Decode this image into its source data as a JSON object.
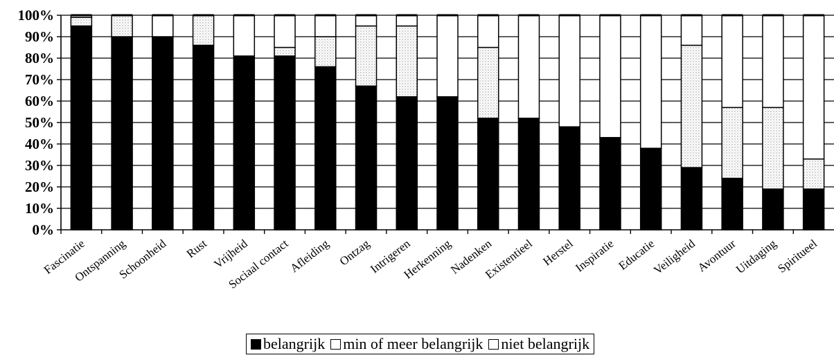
{
  "chart_data": {
    "type": "bar",
    "stacked": true,
    "categories": [
      "Fascinatie",
      "Ontspanning",
      "Schoonheid",
      "Rust",
      "Vrijheid",
      "Sociaal contact",
      "Afleiding",
      "Ontzag",
      "Intrigeren",
      "Herkenning",
      "Nadenken",
      "Existentieel",
      "Herstel",
      "Inspiratie",
      "Educatie",
      "Veiligheid",
      "Avontuur",
      "Uitdaging",
      "Spiritueel"
    ],
    "series": [
      {
        "name": "belangrijk",
        "color": "#000000",
        "values": [
          95,
          90,
          90,
          86,
          81,
          81,
          76,
          67,
          62,
          62,
          52,
          52,
          48,
          43,
          38,
          29,
          24,
          19,
          19
        ]
      },
      {
        "name": "min of meer belangrijk",
        "color": "#d8d8d8",
        "values": [
          4,
          10,
          0,
          14,
          0,
          4,
          14,
          28,
          33,
          0,
          33,
          0,
          0,
          0,
          0,
          57,
          33,
          38,
          14
        ]
      },
      {
        "name": "niet belangrijk",
        "color": "#ffffff",
        "values": [
          1,
          0,
          10,
          0,
          19,
          15,
          10,
          5,
          5,
          38,
          15,
          48,
          52,
          57,
          62,
          14,
          43,
          43,
          67
        ]
      }
    ],
    "yticks": [
      "0%",
      "10%",
      "20%",
      "30%",
      "40%",
      "50%",
      "60%",
      "70%",
      "80%",
      "90%",
      "100%"
    ],
    "ylim": [
      0,
      100
    ],
    "grid": true,
    "legend_position": "bottom",
    "title": "",
    "xlabel": "",
    "ylabel": ""
  },
  "legend": {
    "items": [
      {
        "label": "belangrijk",
        "style": "solid"
      },
      {
        "label": "min of meer belangrijk",
        "style": "dotted"
      },
      {
        "label": "niet belangrijk",
        "style": "open"
      }
    ]
  }
}
